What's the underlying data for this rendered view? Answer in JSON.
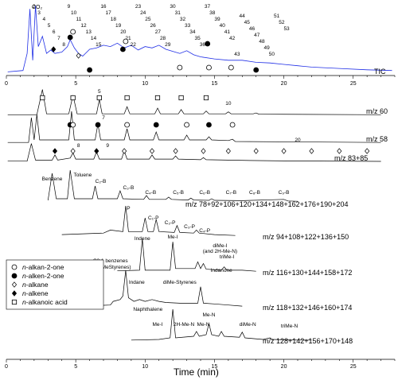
{
  "chart_data": {
    "type": "line",
    "x_axis": {
      "label": "Time (min)",
      "ticks": [
        0,
        5,
        10,
        15,
        20,
        25
      ],
      "range": [
        0,
        28
      ]
    },
    "tic": {
      "label": "TIC",
      "color": "#1f2ee6",
      "co2_label": "CO₂",
      "peak_numbers": [
        "2",
        "3",
        "4",
        "5",
        "6",
        "7",
        "8",
        "9",
        "10",
        "11",
        "12",
        "13",
        "14",
        "15",
        "16",
        "17",
        "18",
        "19",
        "20",
        "21",
        "22",
        "23",
        "24",
        "25",
        "26",
        "27",
        "28",
        "29",
        "30",
        "31",
        "32",
        "33",
        "34",
        "35",
        "36",
        "37",
        "38",
        "39",
        "40",
        "41",
        "42",
        "43",
        "44",
        "45",
        "46",
        "47",
        "48",
        "49",
        "50",
        "51",
        "52",
        "53"
      ],
      "number_color": "#e8001c",
      "samples": [
        [
          0.1,
          0.03
        ],
        [
          1.2,
          0.05
        ],
        [
          1.5,
          0.3
        ],
        [
          1.7,
          0.95
        ],
        [
          1.9,
          0.2
        ],
        [
          2.1,
          1.0
        ],
        [
          2.3,
          0.4
        ],
        [
          2.6,
          0.55
        ],
        [
          2.9,
          0.3
        ],
        [
          3.2,
          0.35
        ],
        [
          3.5,
          0.3
        ],
        [
          4.0,
          0.32
        ],
        [
          4.4,
          0.4
        ],
        [
          4.6,
          0.5
        ],
        [
          4.9,
          0.38
        ],
        [
          5.2,
          0.3
        ],
        [
          5.5,
          0.26
        ],
        [
          6.0,
          0.36
        ],
        [
          6.5,
          0.38
        ],
        [
          7.0,
          0.42
        ],
        [
          7.5,
          0.4
        ],
        [
          8.0,
          0.45
        ],
        [
          8.5,
          0.38
        ],
        [
          9.0,
          0.42
        ],
        [
          9.5,
          0.35
        ],
        [
          10.0,
          0.4
        ],
        [
          10.5,
          0.38
        ],
        [
          11.0,
          0.42
        ],
        [
          11.5,
          0.36
        ],
        [
          12.0,
          0.33
        ],
        [
          12.5,
          0.3
        ],
        [
          13.0,
          0.34
        ],
        [
          13.5,
          0.28
        ],
        [
          14.0,
          0.25
        ],
        [
          15.0,
          0.22
        ],
        [
          16.0,
          0.2
        ],
        [
          17.0,
          0.2
        ],
        [
          18.0,
          0.17
        ],
        [
          19.0,
          0.16
        ],
        [
          20.0,
          0.14
        ],
        [
          21.0,
          0.12
        ],
        [
          22.0,
          0.1
        ],
        [
          24.0,
          0.08
        ],
        [
          26.0,
          0.06
        ],
        [
          27.8,
          0.05
        ]
      ]
    },
    "traces": [
      {
        "label": "m/z 60",
        "samples": [
          [
            0.1,
            0.02
          ],
          [
            2.2,
            0.02
          ],
          [
            2.6,
            0.9
          ],
          [
            2.9,
            0.05
          ],
          [
            4.5,
            0.05
          ],
          [
            4.8,
            0.7
          ],
          [
            5.1,
            0.05
          ],
          [
            6.5,
            0.05
          ],
          [
            6.7,
            0.55
          ],
          [
            6.9,
            0.05
          ],
          [
            8.5,
            0.05
          ],
          [
            8.7,
            0.3
          ],
          [
            8.9,
            0.05
          ],
          [
            10.7,
            0.05
          ],
          [
            10.9,
            0.25
          ],
          [
            11.1,
            0.05
          ],
          [
            12.4,
            0.05
          ],
          [
            12.6,
            0.2
          ],
          [
            12.8,
            0.05
          ],
          [
            14.2,
            0.05
          ],
          [
            14.4,
            0.15
          ],
          [
            14.6,
            0.05
          ],
          [
            15.8,
            0.05
          ],
          [
            16.0,
            0.12
          ],
          [
            16.2,
            0.05
          ],
          [
            17.8,
            0.05
          ],
          [
            18.0,
            0.08
          ],
          [
            18.2,
            0.04
          ],
          [
            27.0,
            0.02
          ]
        ],
        "annotations": [
          "5",
          "10"
        ]
      },
      {
        "label": "m/z 58",
        "samples": [
          [
            0.1,
            0.02
          ],
          [
            1.6,
            0.02
          ],
          [
            1.8,
            0.8
          ],
          [
            2.0,
            0.1
          ],
          [
            2.2,
            0.9
          ],
          [
            2.4,
            0.1
          ],
          [
            4.5,
            0.1
          ],
          [
            4.7,
            1.0
          ],
          [
            4.9,
            0.1
          ],
          [
            6.4,
            0.1
          ],
          [
            6.6,
            0.6
          ],
          [
            6.8,
            0.1
          ],
          [
            8.5,
            0.1
          ],
          [
            8.7,
            0.45
          ],
          [
            8.9,
            0.1
          ],
          [
            10.6,
            0.1
          ],
          [
            10.8,
            0.35
          ],
          [
            11.0,
            0.1
          ],
          [
            12.8,
            0.1
          ],
          [
            13.0,
            0.25
          ],
          [
            13.2,
            0.1
          ],
          [
            14.4,
            0.1
          ],
          [
            14.6,
            0.2
          ],
          [
            14.8,
            0.1
          ],
          [
            16.0,
            0.08
          ],
          [
            16.3,
            0.12
          ],
          [
            16.5,
            0.05
          ],
          [
            27.0,
            0.02
          ]
        ],
        "annotations": [
          "7"
        ]
      },
      {
        "label": "m/z 83+85",
        "samples": [
          [
            0.1,
            0.05
          ],
          [
            1.5,
            0.05
          ],
          [
            1.8,
            0.9
          ],
          [
            2.1,
            0.1
          ],
          [
            3.3,
            0.1
          ],
          [
            3.5,
            0.35
          ],
          [
            3.7,
            0.1
          ],
          [
            4.6,
            0.2
          ],
          [
            4.8,
            0.45
          ],
          [
            5.0,
            0.15
          ],
          [
            6.3,
            0.15
          ],
          [
            6.5,
            0.5
          ],
          [
            6.7,
            0.15
          ],
          [
            8.3,
            0.15
          ],
          [
            8.5,
            0.55
          ],
          [
            8.7,
            0.15
          ],
          [
            10.3,
            0.15
          ],
          [
            10.5,
            0.35
          ],
          [
            10.7,
            0.15
          ],
          [
            12.0,
            0.15
          ],
          [
            12.2,
            0.3
          ],
          [
            12.4,
            0.15
          ],
          [
            14.0,
            0.12
          ],
          [
            14.2,
            0.22
          ],
          [
            14.4,
            0.12
          ],
          [
            17.5,
            0.08
          ],
          [
            20.0,
            0.06
          ],
          [
            27.0,
            0.04
          ]
        ],
        "annotations": [
          "8",
          "9",
          "20"
        ]
      },
      {
        "label": "m/z 78+92+106+120+134+148+162+176+190+204",
        "samples": [
          [
            3.0,
            0.05
          ],
          [
            3.3,
            0.9
          ],
          [
            3.6,
            0.1
          ],
          [
            4.4,
            0.1
          ],
          [
            4.6,
            1.0
          ],
          [
            4.9,
            0.1
          ],
          [
            6.2,
            0.1
          ],
          [
            6.4,
            0.5
          ],
          [
            6.6,
            0.1
          ],
          [
            8.0,
            0.1
          ],
          [
            8.2,
            0.35
          ],
          [
            8.4,
            0.1
          ],
          [
            9.9,
            0.08
          ],
          [
            10.1,
            0.2
          ],
          [
            10.3,
            0.08
          ],
          [
            11.5,
            0.08
          ],
          [
            11.7,
            0.15
          ],
          [
            11.9,
            0.08
          ],
          [
            13.1,
            0.06
          ],
          [
            13.3,
            0.12
          ],
          [
            13.5,
            0.06
          ],
          [
            14.6,
            0.05
          ],
          [
            14.8,
            0.1
          ],
          [
            15.0,
            0.05
          ],
          [
            17.0,
            0.04
          ],
          [
            20.0,
            0.08
          ],
          [
            20.3,
            0.03
          ],
          [
            21.0,
            0.02
          ]
        ],
        "annotations": [
          "Benzene",
          "Toluene",
          "C₂-B",
          "C₃-B",
          "C₄-B",
          "C₅-B",
          "C₆-B",
          "C₇-B",
          "C₈-B",
          "C₉-B"
        ]
      },
      {
        "label": "m/z 94+108+122+136+150",
        "samples": [
          [
            4.0,
            0.05
          ],
          [
            7.0,
            0.1
          ],
          [
            7.5,
            0.2
          ],
          [
            8.4,
            0.15
          ],
          [
            8.6,
            1.0
          ],
          [
            8.8,
            0.15
          ],
          [
            9.8,
            0.15
          ],
          [
            10.0,
            0.6
          ],
          [
            10.2,
            0.15
          ],
          [
            10.6,
            0.15
          ],
          [
            10.8,
            0.55
          ],
          [
            11.0,
            0.15
          ],
          [
            12.1,
            0.12
          ],
          [
            12.3,
            0.35
          ],
          [
            12.5,
            0.12
          ],
          [
            13.5,
            0.1
          ],
          [
            13.7,
            0.2
          ],
          [
            13.9,
            0.1
          ],
          [
            15.0,
            0.05
          ],
          [
            16.5,
            0.02
          ]
        ],
        "annotations": [
          "P",
          "C₁-P",
          "C₂-P",
          "C₃-P",
          "C₄-P"
        ]
      },
      {
        "label": "m/z 116+130+144+158+172",
        "samples": [
          [
            8.0,
            0.03
          ],
          [
            9.6,
            0.05
          ],
          [
            9.8,
            1.0
          ],
          [
            10.0,
            0.05
          ],
          [
            11.8,
            0.05
          ],
          [
            12.0,
            0.9
          ],
          [
            12.2,
            0.1
          ],
          [
            13.6,
            0.1
          ],
          [
            13.8,
            0.3
          ],
          [
            14.0,
            0.1
          ],
          [
            14.2,
            0.25
          ],
          [
            14.4,
            0.08
          ],
          [
            15.5,
            0.05
          ],
          [
            15.7,
            0.15
          ],
          [
            15.9,
            0.05
          ],
          [
            17.0,
            0.05
          ],
          [
            18.0,
            0.02
          ]
        ],
        "annotations": [
          "Indene",
          "Me-I",
          "diMe-I",
          "(and 2H-Me-N)",
          "triMe-I"
        ]
      },
      {
        "label": "m/z 118+132+146+160+174",
        "samples": [
          [
            6.0,
            0.03
          ],
          [
            7.5,
            0.05
          ],
          [
            7.7,
            0.15
          ],
          [
            8.2,
            0.2
          ],
          [
            8.4,
            0.3
          ],
          [
            8.6,
            1.0
          ],
          [
            8.8,
            0.25
          ],
          [
            9.2,
            0.15
          ],
          [
            9.6,
            0.2
          ],
          [
            10.0,
            0.15
          ],
          [
            10.5,
            0.2
          ],
          [
            11.0,
            0.15
          ],
          [
            11.5,
            0.12
          ],
          [
            12.5,
            0.1
          ],
          [
            13.8,
            0.1
          ],
          [
            14.0,
            0.55
          ],
          [
            14.2,
            0.1
          ],
          [
            15.0,
            0.08
          ],
          [
            16.0,
            0.05
          ],
          [
            17.0,
            0.02
          ]
        ],
        "annotations": [
          "C3:1 benzenes",
          "(e.g. MeStyrenes)",
          "Indane",
          "diMe-Styrenes",
          "Indanone"
        ]
      },
      {
        "label": "m/z 128+142+156+170+148",
        "samples": [
          [
            9.0,
            0.03
          ],
          [
            11.0,
            0.05
          ],
          [
            11.8,
            0.1
          ],
          [
            12.0,
            1.0
          ],
          [
            12.2,
            0.1
          ],
          [
            13.5,
            0.15
          ],
          [
            13.7,
            0.3
          ],
          [
            13.9,
            0.15
          ],
          [
            14.4,
            0.2
          ],
          [
            14.6,
            0.55
          ],
          [
            14.8,
            0.2
          ],
          [
            15.3,
            0.15
          ],
          [
            15.5,
            0.3
          ],
          [
            15.7,
            0.15
          ],
          [
            16.8,
            0.12
          ],
          [
            17.0,
            0.28
          ],
          [
            17.2,
            0.1
          ],
          [
            18.5,
            0.05
          ],
          [
            19.0,
            0.1
          ],
          [
            19.2,
            0.05
          ],
          [
            21.0,
            0.03
          ],
          [
            22.0,
            0.03
          ]
        ],
        "annotations": [
          "Naphthalene",
          "Me-I",
          "2H-Me-N",
          "Me-N",
          "Me-N",
          "diMe-N",
          "triMe-N"
        ]
      }
    ],
    "legend": [
      {
        "symbol": "open-circle",
        "label": "n-alkan-2-one"
      },
      {
        "symbol": "filled-circle",
        "label": "n-alken-2-one"
      },
      {
        "symbol": "open-diamond",
        "label": "n-alkane"
      },
      {
        "symbol": "filled-diamond",
        "label": "n-alkene"
      },
      {
        "symbol": "open-square",
        "label": "n-alkanoic acid"
      }
    ]
  }
}
